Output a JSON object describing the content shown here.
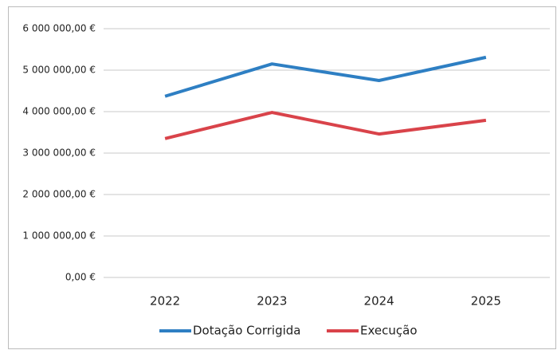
{
  "chart_data": {
    "type": "line",
    "categories": [
      "2022",
      "2023",
      "2024",
      "2025"
    ],
    "series": [
      {
        "name": "Dotação Corrigida",
        "color": "#2e7fc3",
        "values": [
          4370000,
          5150000,
          4750000,
          5310000
        ]
      },
      {
        "name": "Execução",
        "color": "#d9434a",
        "values": [
          3350000,
          3980000,
          3460000,
          3790000
        ]
      }
    ],
    "ylim": [
      0,
      6000000
    ],
    "yticks": [
      {
        "value": 0,
        "label": "0,00 €"
      },
      {
        "value": 1000000,
        "label": "1 000 000,00 €"
      },
      {
        "value": 2000000,
        "label": "2 000 000,00 €"
      },
      {
        "value": 3000000,
        "label": "3 000 000,00 €"
      },
      {
        "value": 4000000,
        "label": "4 000 000,00 €"
      },
      {
        "value": 5000000,
        "label": "5 000 000,00 €"
      },
      {
        "value": 6000000,
        "label": "6 000 000,00 €"
      }
    ],
    "grid": true,
    "legend": "bottom"
  }
}
